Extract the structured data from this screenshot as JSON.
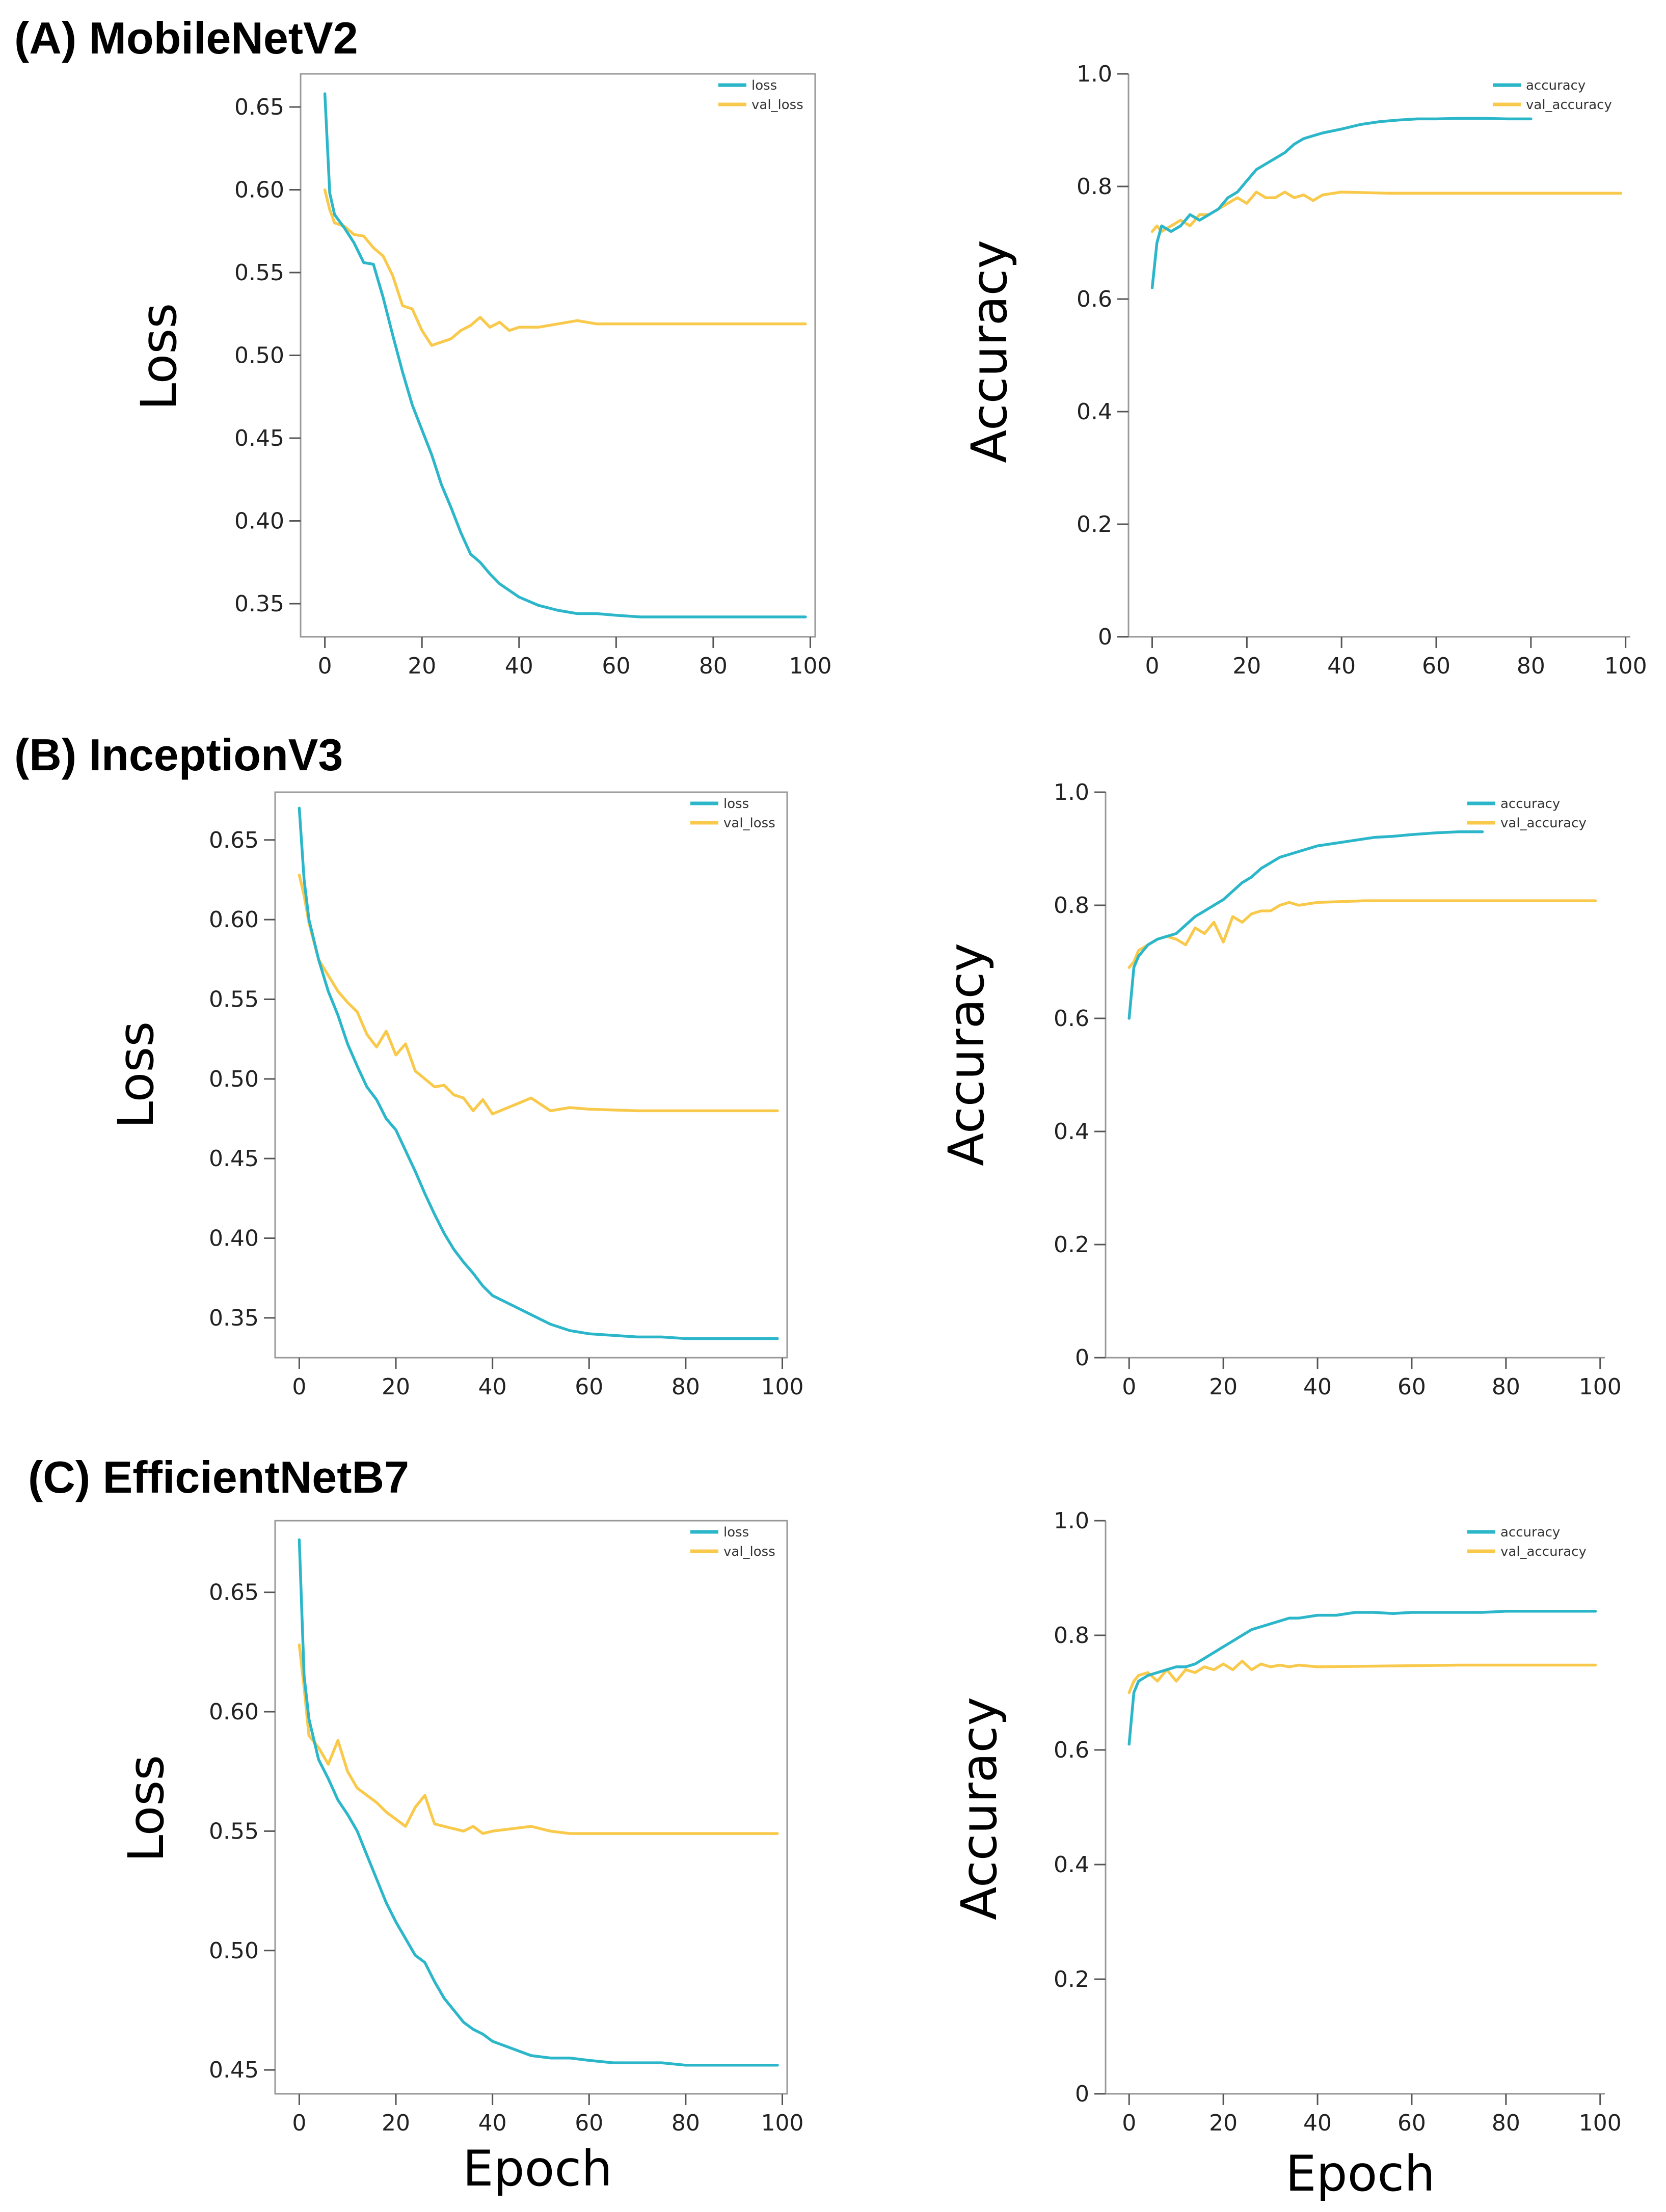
{
  "figure": {
    "colors": {
      "train": "#2bb6c9",
      "val": "#f8c94a",
      "axis": "#999999",
      "text": "#222222"
    },
    "xlabel_bottom": "Epoch"
  },
  "chart_data": [
    {
      "id": "a_loss",
      "type": "line",
      "panel_title": "(A) MobileNetV2",
      "xlabel": "",
      "ylabel": "Loss",
      "xlim": [
        -5,
        101
      ],
      "ylim": [
        0.33,
        0.67
      ],
      "xticks": [
        0,
        20,
        40,
        60,
        80,
        100
      ],
      "xtick_labels": [
        "0",
        "20",
        "40",
        "60",
        "80",
        "100"
      ],
      "yticks": [
        0.35,
        0.4,
        0.45,
        0.5,
        0.55,
        0.6,
        0.65
      ],
      "ytick_labels": [
        "0.35",
        "0.40",
        "0.45",
        "0.50",
        "0.55",
        "0.60",
        "0.65"
      ],
      "legend_position": "top-right",
      "series": [
        {
          "name": "loss",
          "color": "#2bb6c9",
          "x": [
            0,
            1,
            2,
            4,
            6,
            8,
            10,
            12,
            14,
            16,
            18,
            20,
            22,
            24,
            26,
            28,
            30,
            32,
            34,
            36,
            38,
            40,
            44,
            48,
            52,
            56,
            60,
            65,
            70,
            75,
            80,
            85,
            90,
            95,
            99
          ],
          "y": [
            0.658,
            0.598,
            0.585,
            0.577,
            0.568,
            0.556,
            0.555,
            0.535,
            0.512,
            0.49,
            0.47,
            0.455,
            0.44,
            0.422,
            0.408,
            0.393,
            0.38,
            0.375,
            0.368,
            0.362,
            0.358,
            0.354,
            0.349,
            0.346,
            0.344,
            0.344,
            0.343,
            0.342,
            0.342,
            0.342,
            0.342,
            0.342,
            0.342,
            0.342,
            0.342
          ]
        },
        {
          "name": "val_loss",
          "color": "#f8c94a",
          "x": [
            0,
            1,
            2,
            4,
            6,
            8,
            10,
            12,
            14,
            16,
            18,
            20,
            22,
            24,
            26,
            28,
            30,
            32,
            34,
            36,
            38,
            40,
            44,
            48,
            52,
            56,
            60,
            70,
            80,
            90,
            99
          ],
          "y": [
            0.6,
            0.588,
            0.58,
            0.578,
            0.573,
            0.572,
            0.565,
            0.56,
            0.548,
            0.53,
            0.528,
            0.515,
            0.506,
            0.508,
            0.51,
            0.515,
            0.518,
            0.523,
            0.517,
            0.52,
            0.515,
            0.517,
            0.517,
            0.519,
            0.521,
            0.519,
            0.519,
            0.519,
            0.519,
            0.519,
            0.519
          ]
        }
      ]
    },
    {
      "id": "a_acc",
      "type": "line",
      "panel_title": "",
      "xlabel": "",
      "ylabel": "Accuracy",
      "xlim": [
        -5,
        101
      ],
      "ylim": [
        0,
        1.0
      ],
      "xticks": [
        0,
        20,
        40,
        60,
        80,
        100
      ],
      "xtick_labels": [
        "0",
        "20",
        "40",
        "60",
        "80",
        "100"
      ],
      "yticks": [
        0,
        0.2,
        0.4,
        0.6,
        0.8,
        1.0
      ],
      "ytick_labels": [
        "0",
        "0.2",
        "0.4",
        "0.6",
        "0.8",
        "1.0"
      ],
      "legend_position": "top-right",
      "series": [
        {
          "name": "accuracy",
          "color": "#2bb6c9",
          "x": [
            0,
            1,
            2,
            4,
            6,
            8,
            10,
            12,
            14,
            16,
            18,
            20,
            22,
            24,
            26,
            28,
            30,
            32,
            34,
            36,
            40,
            44,
            48,
            52,
            56,
            60,
            65,
            70,
            75,
            80
          ],
          "y": [
            0.62,
            0.7,
            0.73,
            0.72,
            0.73,
            0.75,
            0.74,
            0.75,
            0.76,
            0.78,
            0.79,
            0.81,
            0.83,
            0.84,
            0.85,
            0.86,
            0.875,
            0.885,
            0.89,
            0.895,
            0.902,
            0.91,
            0.915,
            0.918,
            0.92,
            0.92,
            0.921,
            0.921,
            0.92,
            0.92
          ]
        },
        {
          "name": "val_accuracy",
          "color": "#f8c94a",
          "x": [
            0,
            1,
            2,
            4,
            6,
            8,
            10,
            12,
            14,
            16,
            18,
            20,
            22,
            24,
            26,
            28,
            30,
            32,
            34,
            36,
            40,
            50,
            60,
            70,
            80,
            90,
            99
          ],
          "y": [
            0.72,
            0.73,
            0.72,
            0.73,
            0.74,
            0.73,
            0.75,
            0.75,
            0.76,
            0.77,
            0.78,
            0.77,
            0.79,
            0.78,
            0.78,
            0.79,
            0.78,
            0.785,
            0.775,
            0.785,
            0.79,
            0.788,
            0.788,
            0.788,
            0.788,
            0.788,
            0.788
          ]
        }
      ]
    },
    {
      "id": "b_loss",
      "type": "line",
      "panel_title": "(B) InceptionV3",
      "xlabel": "",
      "ylabel": "Loss",
      "xlim": [
        -5,
        101
      ],
      "ylim": [
        0.325,
        0.68
      ],
      "xticks": [
        0,
        20,
        40,
        60,
        80,
        100
      ],
      "xtick_labels": [
        "0",
        "20",
        "40",
        "60",
        "80",
        "100"
      ],
      "yticks": [
        0.35,
        0.4,
        0.45,
        0.5,
        0.55,
        0.6,
        0.65
      ],
      "ytick_labels": [
        "0.35",
        "0.40",
        "0.45",
        "0.50",
        "0.55",
        "0.60",
        "0.65"
      ],
      "legend_position": "top-right",
      "series": [
        {
          "name": "loss",
          "color": "#2bb6c9",
          "x": [
            0,
            1,
            2,
            4,
            6,
            8,
            10,
            12,
            14,
            16,
            18,
            20,
            22,
            24,
            26,
            28,
            30,
            32,
            34,
            36,
            38,
            40,
            44,
            48,
            52,
            56,
            60,
            65,
            70,
            75,
            80,
            85,
            90,
            95,
            99
          ],
          "y": [
            0.67,
            0.625,
            0.6,
            0.575,
            0.555,
            0.54,
            0.522,
            0.508,
            0.495,
            0.487,
            0.475,
            0.468,
            0.455,
            0.442,
            0.428,
            0.415,
            0.403,
            0.393,
            0.385,
            0.378,
            0.37,
            0.364,
            0.358,
            0.352,
            0.346,
            0.342,
            0.34,
            0.339,
            0.338,
            0.338,
            0.337,
            0.337,
            0.337,
            0.337,
            0.337
          ]
        },
        {
          "name": "val_loss",
          "color": "#f8c94a",
          "x": [
            0,
            1,
            2,
            4,
            6,
            8,
            10,
            12,
            14,
            16,
            18,
            20,
            22,
            24,
            26,
            28,
            30,
            32,
            34,
            36,
            38,
            40,
            44,
            48,
            52,
            56,
            60,
            70,
            80,
            90,
            99
          ],
          "y": [
            0.628,
            0.615,
            0.598,
            0.575,
            0.565,
            0.555,
            0.548,
            0.542,
            0.528,
            0.52,
            0.53,
            0.515,
            0.522,
            0.505,
            0.5,
            0.495,
            0.496,
            0.49,
            0.488,
            0.48,
            0.487,
            0.478,
            0.483,
            0.488,
            0.48,
            0.482,
            0.481,
            0.48,
            0.48,
            0.48,
            0.48
          ]
        }
      ]
    },
    {
      "id": "b_acc",
      "type": "line",
      "panel_title": "",
      "xlabel": "",
      "ylabel": "Accuracy",
      "xlim": [
        -5,
        101
      ],
      "ylim": [
        0,
        1.0
      ],
      "xticks": [
        0,
        20,
        40,
        60,
        80,
        100
      ],
      "xtick_labels": [
        "0",
        "20",
        "40",
        "60",
        "80",
        "100"
      ],
      "yticks": [
        0,
        0.2,
        0.4,
        0.6,
        0.8,
        1.0
      ],
      "ytick_labels": [
        "0",
        "0.2",
        "0.4",
        "0.6",
        "0.8",
        "1.0"
      ],
      "legend_position": "top-right",
      "series": [
        {
          "name": "accuracy",
          "color": "#2bb6c9",
          "x": [
            0,
            1,
            2,
            4,
            6,
            8,
            10,
            12,
            14,
            16,
            18,
            20,
            22,
            24,
            26,
            28,
            30,
            32,
            34,
            36,
            40,
            44,
            48,
            52,
            56,
            60,
            65,
            70,
            75
          ],
          "y": [
            0.6,
            0.69,
            0.71,
            0.73,
            0.74,
            0.745,
            0.75,
            0.765,
            0.78,
            0.79,
            0.8,
            0.81,
            0.825,
            0.84,
            0.85,
            0.865,
            0.875,
            0.885,
            0.89,
            0.895,
            0.905,
            0.91,
            0.915,
            0.92,
            0.922,
            0.925,
            0.928,
            0.93,
            0.93
          ]
        },
        {
          "name": "val_accuracy",
          "color": "#f8c94a",
          "x": [
            0,
            1,
            2,
            4,
            6,
            8,
            10,
            12,
            14,
            16,
            18,
            20,
            22,
            24,
            26,
            28,
            30,
            32,
            34,
            36,
            40,
            50,
            60,
            70,
            80,
            90,
            99
          ],
          "y": [
            0.69,
            0.7,
            0.72,
            0.73,
            0.74,
            0.745,
            0.74,
            0.73,
            0.76,
            0.75,
            0.77,
            0.735,
            0.78,
            0.77,
            0.785,
            0.79,
            0.79,
            0.8,
            0.805,
            0.8,
            0.805,
            0.808,
            0.808,
            0.808,
            0.808,
            0.808,
            0.808
          ]
        }
      ]
    },
    {
      "id": "c_loss",
      "type": "line",
      "panel_title": "(C) EfficientNetB7",
      "xlabel": "",
      "ylabel": "Loss",
      "xlim": [
        -5,
        101
      ],
      "ylim": [
        0.44,
        0.68
      ],
      "xticks": [
        0,
        20,
        40,
        60,
        80,
        100
      ],
      "xtick_labels": [
        "0",
        "20",
        "40",
        "60",
        "80",
        "100"
      ],
      "yticks": [
        0.45,
        0.5,
        0.55,
        0.6,
        0.65
      ],
      "ytick_labels": [
        "0.45",
        "0.50",
        "0.55",
        "0.60",
        "0.65"
      ],
      "legend_position": "top-right",
      "series": [
        {
          "name": "loss",
          "color": "#2bb6c9",
          "x": [
            0,
            1,
            2,
            4,
            6,
            8,
            10,
            12,
            14,
            16,
            18,
            20,
            22,
            24,
            26,
            28,
            30,
            32,
            34,
            36,
            38,
            40,
            44,
            48,
            52,
            56,
            60,
            65,
            70,
            75,
            80,
            85,
            90,
            95,
            99
          ],
          "y": [
            0.672,
            0.615,
            0.597,
            0.58,
            0.572,
            0.563,
            0.557,
            0.55,
            0.54,
            0.53,
            0.52,
            0.512,
            0.505,
            0.498,
            0.495,
            0.487,
            0.48,
            0.475,
            0.47,
            0.467,
            0.465,
            0.462,
            0.459,
            0.456,
            0.455,
            0.455,
            0.454,
            0.453,
            0.453,
            0.453,
            0.452,
            0.452,
            0.452,
            0.452,
            0.452
          ]
        },
        {
          "name": "val_loss",
          "color": "#f8c94a",
          "x": [
            0,
            1,
            2,
            4,
            6,
            8,
            10,
            12,
            14,
            16,
            18,
            20,
            22,
            24,
            26,
            28,
            30,
            32,
            34,
            36,
            38,
            40,
            44,
            48,
            52,
            56,
            60,
            70,
            80,
            90,
            99
          ],
          "y": [
            0.628,
            0.61,
            0.59,
            0.585,
            0.578,
            0.588,
            0.575,
            0.568,
            0.565,
            0.562,
            0.558,
            0.555,
            0.552,
            0.56,
            0.565,
            0.553,
            0.552,
            0.551,
            0.55,
            0.552,
            0.549,
            0.55,
            0.551,
            0.552,
            0.55,
            0.549,
            0.549,
            0.549,
            0.549,
            0.549,
            0.549
          ]
        }
      ]
    },
    {
      "id": "c_acc",
      "type": "line",
      "panel_title": "",
      "xlabel": "Epoch",
      "ylabel": "Accuracy",
      "xlim": [
        -5,
        101
      ],
      "ylim": [
        0,
        1.0
      ],
      "xticks": [
        0,
        20,
        40,
        60,
        80,
        100
      ],
      "xtick_labels": [
        "0",
        "20",
        "40",
        "60",
        "80",
        "100"
      ],
      "yticks": [
        0,
        0.2,
        0.4,
        0.6,
        0.8,
        1.0
      ],
      "ytick_labels": [
        "0",
        "0.2",
        "0.4",
        "0.6",
        "0.8",
        "1.0"
      ],
      "legend_position": "top-right",
      "series": [
        {
          "name": "accuracy",
          "color": "#2bb6c9",
          "x": [
            0,
            1,
            2,
            4,
            6,
            8,
            10,
            12,
            14,
            16,
            18,
            20,
            22,
            24,
            26,
            28,
            30,
            32,
            34,
            36,
            40,
            44,
            48,
            52,
            56,
            60,
            65,
            70,
            75,
            80,
            85,
            90,
            95,
            99
          ],
          "y": [
            0.61,
            0.7,
            0.72,
            0.73,
            0.735,
            0.74,
            0.745,
            0.745,
            0.75,
            0.76,
            0.77,
            0.78,
            0.79,
            0.8,
            0.81,
            0.815,
            0.82,
            0.825,
            0.83,
            0.83,
            0.835,
            0.835,
            0.84,
            0.84,
            0.838,
            0.84,
            0.84,
            0.84,
            0.84,
            0.842,
            0.842,
            0.842,
            0.842,
            0.842
          ]
        },
        {
          "name": "val_accuracy",
          "color": "#f8c94a",
          "x": [
            0,
            1,
            2,
            4,
            6,
            8,
            10,
            12,
            14,
            16,
            18,
            20,
            22,
            24,
            26,
            28,
            30,
            32,
            34,
            36,
            40,
            50,
            60,
            70,
            80,
            90,
            99
          ],
          "y": [
            0.7,
            0.72,
            0.73,
            0.735,
            0.72,
            0.74,
            0.72,
            0.74,
            0.735,
            0.745,
            0.74,
            0.75,
            0.74,
            0.755,
            0.74,
            0.75,
            0.745,
            0.748,
            0.745,
            0.748,
            0.745,
            0.746,
            0.747,
            0.748,
            0.748,
            0.748,
            0.748
          ]
        }
      ]
    }
  ]
}
